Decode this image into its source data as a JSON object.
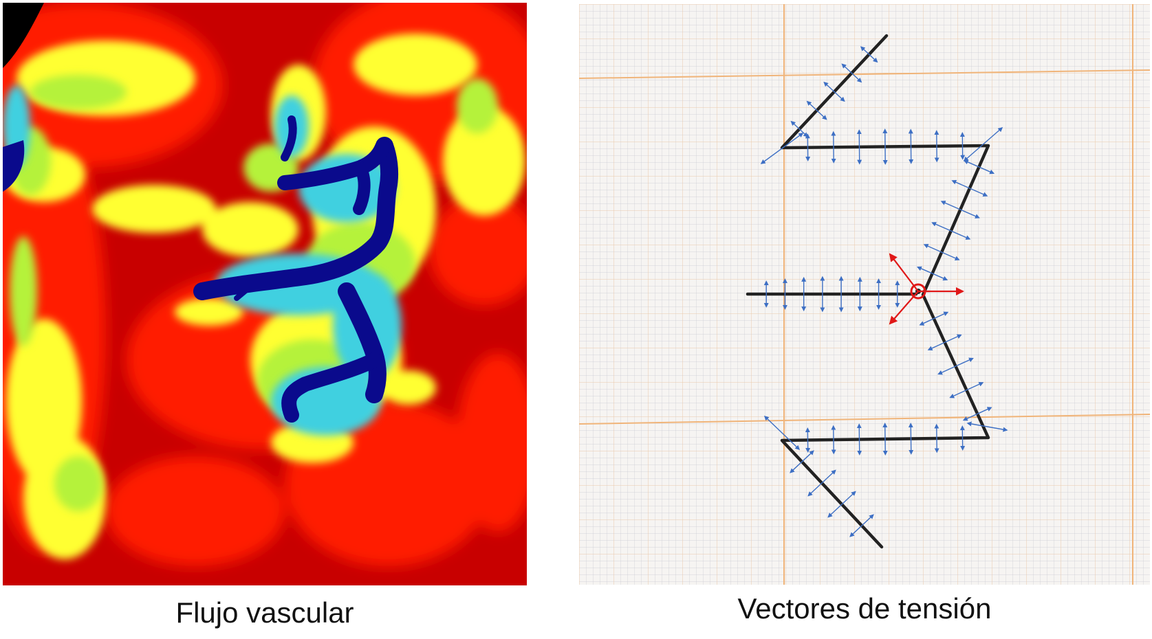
{
  "panels": {
    "left": {
      "caption": "Flujo vascular",
      "colormap": {
        "low": "#0a0a8c",
        "mid_low": "#3fd0e0",
        "mid": "#b5f23a",
        "mid_high": "#ffff33",
        "high_orange": "#ff6a00",
        "high": "#ff1a00",
        "max": "#c80000"
      }
    },
    "right": {
      "caption": "Vectores de tensión",
      "colors": {
        "paper": "#f6f4f2",
        "grid_fine": "#c9c9d2",
        "grid_major": "#f0b479",
        "ink": "#222222",
        "tension_vector": "#3d6fc4",
        "central_vector": "#e01818"
      }
    }
  }
}
